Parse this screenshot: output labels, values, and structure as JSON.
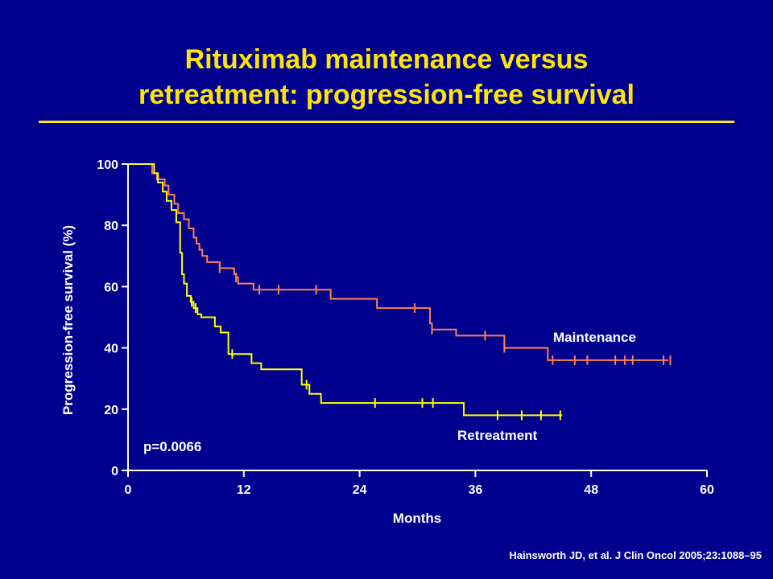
{
  "slide": {
    "title_line1": "Rituximab maintenance versus",
    "title_line2": "retreatment: progression-free survival",
    "citation": "Hainsworth JD, et al. J Clin Oncol 2005;23:1088–95",
    "colors": {
      "background": "#00008f",
      "title": "#ffe500",
      "text": "#ffffff",
      "maintenance": "#ff7f50",
      "retreatment": "#ffff00"
    }
  },
  "chart_data": {
    "type": "line",
    "step": true,
    "xlabel": "Months",
    "ylabel": "Progression-free survival (%)",
    "xlim": [
      0,
      60
    ],
    "ylim": [
      0,
      100
    ],
    "xticks": [
      0,
      12,
      24,
      36,
      48,
      60
    ],
    "yticks": [
      0,
      20,
      40,
      60,
      80,
      100
    ],
    "grid": false,
    "annotation": "p=0.0066",
    "series": [
      {
        "name": "Maintenance",
        "color": "#ff7f50",
        "x": [
          0,
          2.5,
          3,
          3.8,
          4.2,
          4.8,
          5.2,
          5.8,
          6.3,
          6.8,
          7.1,
          7.4,
          7.7,
          8.2,
          9.5,
          11,
          11.2,
          11.4,
          13,
          15,
          21,
          25.8,
          31.3,
          31.5,
          34,
          39,
          43.5,
          48,
          54,
          56
        ],
        "y": [
          100,
          97,
          95,
          93,
          90,
          87,
          84,
          82,
          79,
          76,
          74,
          72,
          70,
          68,
          66,
          64,
          63,
          61,
          59,
          59,
          56,
          53,
          48,
          46,
          44,
          40,
          36,
          36,
          36,
          36
        ],
        "censor_x": [
          9.5,
          11.2,
          13.6,
          15.6,
          19.5,
          29.7,
          31.5,
          37,
          39,
          44,
          46.3,
          47.6,
          50.5,
          51.5,
          52.3,
          55.5,
          56.2
        ]
      },
      {
        "name": "Retreatment",
        "color": "#ffff00",
        "x": [
          0,
          2.7,
          3.1,
          3.6,
          4,
          4.5,
          5,
          5.4,
          5.6,
          5.8,
          6.1,
          6.5,
          6.8,
          7.2,
          7.6,
          9,
          9.6,
          10.4,
          12.8,
          13.8,
          18,
          18.8,
          20,
          24,
          34.8,
          45
        ],
        "y": [
          100,
          97,
          94,
          91,
          88,
          85,
          81,
          71,
          64,
          61,
          57,
          55,
          53,
          51,
          50,
          47,
          45,
          38,
          35,
          33,
          28,
          25,
          22,
          22,
          18,
          18
        ],
        "censor_x": [
          6.6,
          7.0,
          10.8,
          18.5,
          25.6,
          30.5,
          31.6,
          38.3,
          40.8,
          42.8,
          44.8
        ]
      }
    ]
  }
}
